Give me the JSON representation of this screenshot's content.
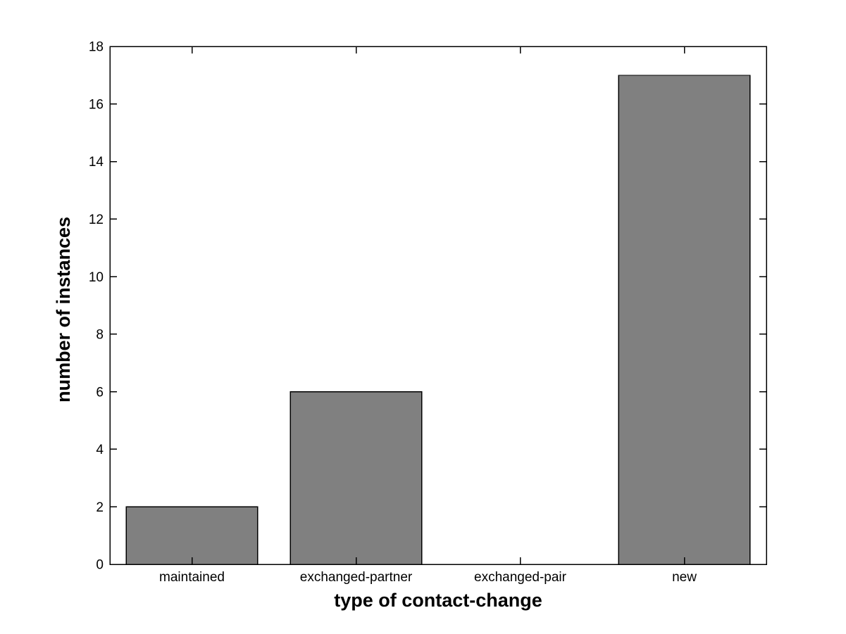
{
  "chart_data": {
    "type": "bar",
    "categories": [
      "maintained",
      "exchanged-partner",
      "exchanged-pair",
      "new"
    ],
    "values": [
      2,
      6,
      0,
      17
    ],
    "title": "",
    "xlabel": "type of contact-change",
    "ylabel": "number of instances",
    "ylim": [
      0,
      18
    ],
    "yticks": [
      0,
      2,
      4,
      6,
      8,
      10,
      12,
      14,
      16,
      18
    ],
    "ytick_labels": [
      "0",
      "2",
      "4",
      "6",
      "8",
      "10",
      "12",
      "14",
      "16",
      "18"
    ],
    "grid": false,
    "legend": null,
    "bar_width_fraction": 0.8,
    "tick_direction": "in",
    "colors": {
      "bar_fill": "#808080",
      "bar_edge": "#000000",
      "axis": "#000000",
      "background": "#ffffff",
      "text": "#000000"
    }
  }
}
